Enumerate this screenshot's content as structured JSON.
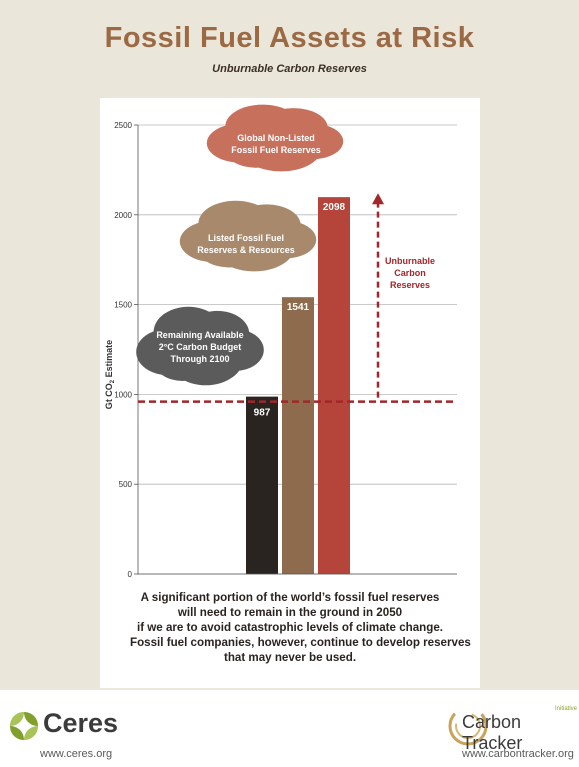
{
  "header": {
    "title": "Fossil Fuel Assets at Risk",
    "subtitle": "Unburnable Carbon Reserves"
  },
  "chart_data": {
    "type": "bar",
    "title": "Fossil Fuel Assets at Risk",
    "subtitle": "Unburnable Carbon Reserves",
    "ylabel": "Gt CO2 Estimate",
    "ylim": [
      0,
      2500
    ],
    "yticks": [
      "0",
      "500",
      "1000",
      "1500",
      "2000",
      "2500"
    ],
    "grid": true,
    "categories": [
      "Remaining Available 2°C Carbon Budget Through 2100",
      "Listed Fossil Fuel Reserves & Resources",
      "Global Non-Listed Fossil Fuel Reserves"
    ],
    "values": [
      987,
      1541,
      2098
    ],
    "value_labels": [
      "987",
      "1541",
      "2098"
    ],
    "budget_line": 960,
    "annotation": "Unburnable Carbon Reserves",
    "colors": {
      "budget": "#2a2421",
      "listed_lower": "#8e6b4c",
      "listed_upper": "#c7b19b",
      "nonlisted_lower": "#b5453a",
      "nonlisted_upper": "#d9a691",
      "smoke_budget": "#5b5b5b",
      "smoke_listed": "#a8896c",
      "smoke_nonlisted": "#c7705c",
      "annotation": "#a3262a",
      "grid": "#b8b8b8"
    }
  },
  "cloud_labels": {
    "budget": [
      "Remaining Available",
      "2°C Carbon Budget",
      "Through 2100"
    ],
    "listed": [
      "Listed Fossil Fuel",
      "Reserves & Resources"
    ],
    "nonlisted": [
      "Global Non-Listed",
      "Fossil Fuel Reserves"
    ]
  },
  "annotation_lines": [
    "Unburnable",
    "Carbon",
    "Reserves"
  ],
  "caption": {
    "lines": [
      "A significant portion of the world’s fossil fuel reserves",
      "will need to remain in the ground in 2050",
      "if we are to avoid catastrophic levels of climate change.",
      "Fossil fuel companies, however, continue to develop reserves",
      "that may never be used."
    ]
  },
  "footer": {
    "ceres_name": "Ceres",
    "ceres_url": "www.ceres.org",
    "ct_name": "Carbon Tracker",
    "ct_initiative": "Initiative",
    "ct_url": "www.carbontracker.org",
    "ceres_color": "#7fa12c",
    "ct_color": "#c9a35a"
  }
}
